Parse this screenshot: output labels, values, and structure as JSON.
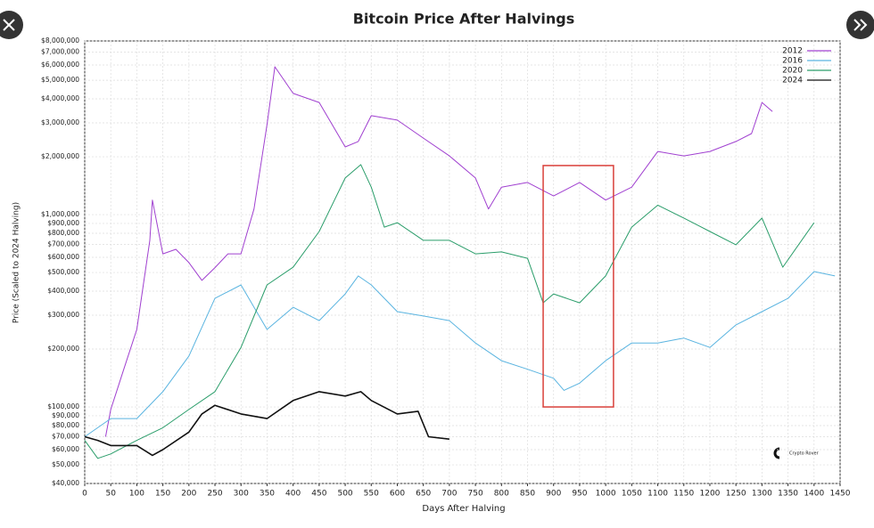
{
  "chart_data": {
    "type": "line",
    "title": "Bitcoin Price After Halvings",
    "xlabel": "Days After Halving",
    "ylabel": "Price (Scaled to 2024 Halving)",
    "yscale": "log",
    "grid": true,
    "legend": "upper right",
    "watermark": "Crypto Rover",
    "xlim": [
      0,
      1450
    ],
    "ylim": [
      40000,
      8000000
    ],
    "xticks": [
      0,
      50,
      100,
      150,
      200,
      250,
      300,
      350,
      400,
      450,
      500,
      550,
      600,
      650,
      700,
      750,
      800,
      850,
      900,
      950,
      1000,
      1050,
      1100,
      1150,
      1200,
      1250,
      1300,
      1350,
      1400,
      1450
    ],
    "yticks": [
      {
        "value": 40000,
        "label": "$40,000"
      },
      {
        "value": 50000,
        "label": "$50,000"
      },
      {
        "value": 60000,
        "label": "$60,000"
      },
      {
        "value": 70000,
        "label": "$70,000"
      },
      {
        "value": 80000,
        "label": "$80,000"
      },
      {
        "value": 90000,
        "label": "$90,000"
      },
      {
        "value": 100000,
        "label": "$100,000"
      },
      {
        "value": 200000,
        "label": "$200,000"
      },
      {
        "value": 300000,
        "label": "$300,000"
      },
      {
        "value": 400000,
        "label": "$400,000"
      },
      {
        "value": 500000,
        "label": "$500,000"
      },
      {
        "value": 600000,
        "label": "$600,000"
      },
      {
        "value": 700000,
        "label": "$700,000"
      },
      {
        "value": 800000,
        "label": "$800,000"
      },
      {
        "value": 900000,
        "label": "$900,000"
      },
      {
        "value": 1000000,
        "label": "$1,000,000"
      },
      {
        "value": 2000000,
        "label": "$2,000,000"
      },
      {
        "value": 3000000,
        "label": "$3,000,000"
      },
      {
        "value": 4000000,
        "label": "$4,000,000"
      },
      {
        "value": 5000000,
        "label": "$5,000,000"
      },
      {
        "value": 6000000,
        "label": "$6,000,000"
      },
      {
        "value": 7000000,
        "label": "$7,000,000"
      },
      {
        "value": 8000000,
        "label": "$8,000,000"
      }
    ],
    "highlight_box": {
      "color": "#d9403a",
      "x": [
        880,
        1015
      ],
      "y": [
        100000,
        1800000
      ]
    },
    "series": [
      {
        "name": "2012",
        "color": "#a040d0",
        "x": [
          40,
          50,
          75,
          100,
          125,
          130,
          150,
          175,
          200,
          225,
          250,
          275,
          300,
          325,
          350,
          365,
          400,
          450,
          500,
          525,
          550,
          600,
          650,
          700,
          750,
          775,
          800,
          850,
          900,
          950,
          1000,
          1050,
          1100,
          1150,
          1200,
          1250,
          1280,
          1300,
          1320
        ],
        "values": [
          70000,
          97000,
          157000,
          253000,
          735000,
          1190000,
          625000,
          660000,
          563000,
          455000,
          530000,
          625000,
          625000,
          1070000,
          2940000,
          5870000,
          4270000,
          3830000,
          2250000,
          2400000,
          3270000,
          3100000,
          2500000,
          2020000,
          1550000,
          1070000,
          1390000,
          1470000,
          1250000,
          1470000,
          1190000,
          1390000,
          2130000,
          2020000,
          2130000,
          2400000,
          2640000,
          3830000,
          3440000
        ]
      },
      {
        "name": "2016",
        "color": "#5ab4e0",
        "x": [
          0,
          50,
          100,
          150,
          200,
          250,
          300,
          350,
          400,
          450,
          500,
          525,
          550,
          600,
          650,
          700,
          750,
          800,
          850,
          900,
          920,
          950,
          1000,
          1050,
          1100,
          1150,
          1200,
          1250,
          1300,
          1350,
          1400,
          1440
        ],
        "values": [
          70000,
          87000,
          87000,
          120000,
          184000,
          367000,
          431000,
          253000,
          330000,
          281000,
          387000,
          480000,
          431000,
          313000,
          297000,
          281000,
          215000,
          174000,
          157000,
          141000,
          122000,
          133000,
          174000,
          215000,
          215000,
          228000,
          204000,
          267000,
          313000,
          367000,
          506000,
          480000
        ]
      },
      {
        "name": "2020",
        "color": "#2a9d6a",
        "x": [
          0,
          25,
          50,
          100,
          150,
          200,
          250,
          300,
          350,
          400,
          450,
          500,
          530,
          550,
          575,
          600,
          650,
          700,
          750,
          800,
          850,
          880,
          900,
          950,
          1000,
          1050,
          1100,
          1150,
          1200,
          1250,
          1300,
          1340,
          1400
        ],
        "values": [
          67000,
          54000,
          57000,
          67000,
          78000,
          97000,
          120000,
          204000,
          431000,
          533000,
          817000,
          1550000,
          1820000,
          1390000,
          861000,
          908000,
          735000,
          735000,
          625000,
          640000,
          593000,
          348000,
          387000,
          348000,
          480000,
          861000,
          1120000,
          960000,
          817000,
          697000,
          960000,
          533000,
          908000
        ]
      },
      {
        "name": "2024",
        "color": "#111111",
        "x": [
          0,
          25,
          50,
          100,
          130,
          150,
          200,
          225,
          250,
          300,
          350,
          400,
          450,
          500,
          530,
          550,
          600,
          640,
          660,
          700
        ],
        "values": [
          70000,
          67000,
          63000,
          63000,
          56000,
          60000,
          74000,
          92000,
          102000,
          92000,
          87000,
          108000,
          120000,
          114000,
          120000,
          108000,
          92000,
          95000,
          70000,
          68000
        ]
      }
    ]
  }
}
